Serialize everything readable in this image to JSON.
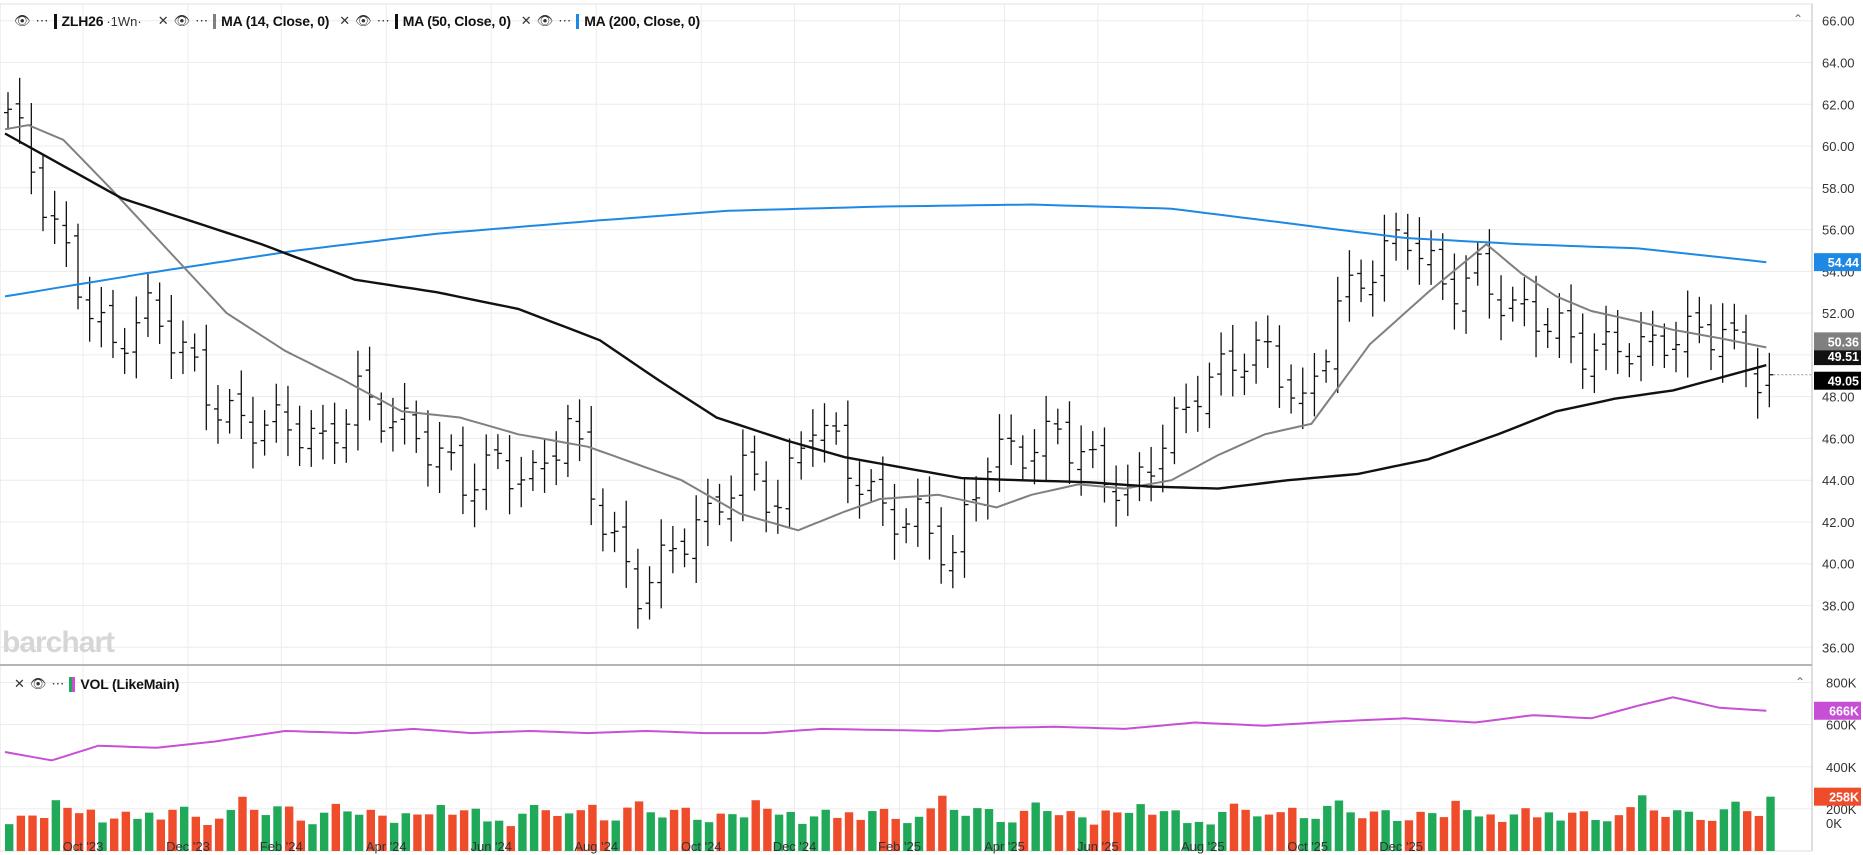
{
  "legend_main": {
    "symbol": "ZLH26",
    "interval": "1Wn",
    "ma14_label": "MA (14, Close, 0)",
    "ma50_label": "MA (50, Close, 0)",
    "ma200_label": "MA (200, Close, 0)"
  },
  "legend_vol": {
    "label": "VOL (LikeMain)"
  },
  "watermark": "barchart",
  "colors": {
    "ma14": "#808080",
    "ma50": "#111111",
    "ma200": "#1e88e5",
    "vol_ma": "#c74fd6",
    "vol_up": "#21a95a",
    "vol_down": "#ef4c2b",
    "price_bars": "#111111"
  },
  "chart_data": [
    {
      "type": "ohlc",
      "panel": "price",
      "symbol": "ZLH26",
      "interval": "1Wn",
      "y_axis_ticks": [
        "66.00",
        "64.00",
        "62.00",
        "60.00",
        "58.00",
        "56.00",
        "54.00",
        "52.00",
        "50.00",
        "48.00",
        "46.00",
        "44.00",
        "42.00",
        "40.00",
        "38.00",
        "36.00"
      ],
      "x_axis_ticks": [
        "Oct '23",
        "Dec '23",
        "Feb '24",
        "Apr '24",
        "Jun '24",
        "Aug '24",
        "Oct '24",
        "Dec '24",
        "Feb '25",
        "Apr '25",
        "Jun '25",
        "Aug '25",
        "Oct '25",
        "Dec '25"
      ],
      "ylim": [
        35.2,
        66.8
      ],
      "price_labels": [
        {
          "name": "MA 200",
          "value": "54.44"
        },
        {
          "name": "MA 14",
          "value": "50.36"
        },
        {
          "name": "MA 50",
          "value": "49.51"
        },
        {
          "name": "Last",
          "value": "49.05"
        }
      ],
      "close_anchors": [
        [
          0,
          61.2
        ],
        [
          3,
          57.2
        ],
        [
          6,
          54.0
        ],
        [
          9,
          50.5
        ],
        [
          12,
          51.5
        ],
        [
          15,
          50.0
        ],
        [
          18,
          48.0
        ],
        [
          21,
          46.8
        ],
        [
          24,
          46.0
        ],
        [
          27,
          45.5
        ],
        [
          30,
          48.8
        ],
        [
          33,
          47.0
        ],
        [
          36,
          45.0
        ],
        [
          39,
          43.8
        ],
        [
          42,
          45.5
        ],
        [
          45,
          44.0
        ],
        [
          48,
          46.0
        ],
        [
          51,
          42.0
        ],
        [
          54,
          39.3
        ],
        [
          57,
          40.8
        ],
        [
          60,
          41.5
        ],
        [
          63,
          44.5
        ],
        [
          66,
          43.5
        ],
        [
          69,
          47.0
        ],
        [
          72,
          44.0
        ],
        [
          75,
          42.5
        ],
        [
          78,
          42.8
        ],
        [
          81,
          40.2
        ],
        [
          84,
          44.5
        ],
        [
          87,
          45.5
        ],
        [
          90,
          47.0
        ],
        [
          93,
          44.5
        ],
        [
          96,
          42.5
        ],
        [
          99,
          46.0
        ],
        [
          102,
          49.0
        ],
        [
          105,
          49.5
        ],
        [
          108,
          49.5
        ],
        [
          111,
          47.5
        ],
        [
          114,
          53.0
        ],
        [
          117,
          54.0
        ],
        [
          120,
          55.2
        ],
        [
          123,
          53.5
        ],
        [
          126,
          54.5
        ],
        [
          129,
          51.8
        ],
        [
          132,
          51.0
        ],
        [
          135,
          50.5
        ],
        [
          138,
          51.0
        ],
        [
          141,
          50.0
        ],
        [
          144,
          50.5
        ],
        [
          147,
          51.5
        ],
        [
          150,
          49.5
        ],
        [
          151,
          49.05
        ]
      ],
      "ma14_anchors": [
        [
          0,
          60.8
        ],
        [
          2,
          61.0
        ],
        [
          5,
          60.3
        ],
        [
          9,
          58.0
        ],
        [
          14,
          55.0
        ],
        [
          19,
          52.0
        ],
        [
          24,
          50.2
        ],
        [
          29,
          48.8
        ],
        [
          34,
          47.3
        ],
        [
          39,
          47.0
        ],
        [
          44,
          46.2
        ],
        [
          50,
          45.6
        ],
        [
          54,
          44.8
        ],
        [
          58,
          44.0
        ],
        [
          63,
          42.4
        ],
        [
          68,
          41.6
        ],
        [
          72,
          42.5
        ],
        [
          75,
          43.1
        ],
        [
          80,
          43.3
        ],
        [
          85,
          42.7
        ],
        [
          88,
          43.3
        ],
        [
          92,
          43.8
        ],
        [
          96,
          43.6
        ],
        [
          100,
          44.0
        ],
        [
          104,
          45.2
        ],
        [
          108,
          46.2
        ],
        [
          112,
          46.7
        ],
        [
          117,
          50.5
        ],
        [
          122,
          53.0
        ],
        [
          127,
          55.3
        ],
        [
          130,
          53.9
        ],
        [
          133,
          52.8
        ],
        [
          136,
          52.1
        ],
        [
          140,
          51.6
        ],
        [
          143,
          51.2
        ],
        [
          147,
          50.8
        ],
        [
          151,
          50.36
        ]
      ],
      "ma50_anchors": [
        [
          0,
          60.6
        ],
        [
          10,
          57.5
        ],
        [
          22,
          55.3
        ],
        [
          30,
          53.6
        ],
        [
          37,
          53.0
        ],
        [
          44,
          52.2
        ],
        [
          51,
          50.7
        ],
        [
          56,
          48.8
        ],
        [
          61,
          47.0
        ],
        [
          67,
          45.9
        ],
        [
          72,
          45.1
        ],
        [
          77,
          44.6
        ],
        [
          82,
          44.1
        ],
        [
          87,
          44.0
        ],
        [
          93,
          43.9
        ],
        [
          98,
          43.7
        ],
        [
          104,
          43.6
        ],
        [
          110,
          44.0
        ],
        [
          116,
          44.3
        ],
        [
          122,
          45.0
        ],
        [
          128,
          46.2
        ],
        [
          133,
          47.3
        ],
        [
          138,
          47.9
        ],
        [
          143,
          48.3
        ],
        [
          147,
          48.9
        ],
        [
          151,
          49.51
        ]
      ],
      "ma200_anchors": [
        [
          0,
          52.8
        ],
        [
          12,
          53.9
        ],
        [
          25,
          55.0
        ],
        [
          37,
          55.8
        ],
        [
          50,
          56.4
        ],
        [
          62,
          56.9
        ],
        [
          75,
          57.1
        ],
        [
          88,
          57.2
        ],
        [
          100,
          57.0
        ],
        [
          110,
          56.3
        ],
        [
          120,
          55.6
        ],
        [
          130,
          55.3
        ],
        [
          140,
          55.1
        ],
        [
          151,
          54.44
        ]
      ]
    },
    {
      "type": "bar",
      "panel": "volume",
      "label": "VOL (LikeMain)",
      "y_axis_ticks": [
        "800K",
        "600K",
        "400K",
        "200K",
        "0K"
      ],
      "ylim": [
        0,
        850000
      ],
      "value_labels": [
        {
          "name": "VOL MA",
          "value": "666K"
        },
        {
          "name": "Last volume",
          "value": "258K"
        }
      ],
      "volume_pattern": [
        150000,
        175000,
        160000,
        140000,
        210000,
        180000,
        165000,
        195000,
        150000,
        170000,
        185000,
        140000,
        160000,
        130000,
        175000,
        200000,
        170000,
        145000,
        160000,
        185000,
        230000,
        170000,
        150000,
        195000,
        210000,
        160000,
        140000,
        180000,
        205000,
        165000
      ],
      "vol_ma_anchors": [
        [
          0,
          470000
        ],
        [
          4,
          430000
        ],
        [
          8,
          500000
        ],
        [
          13,
          490000
        ],
        [
          18,
          520000
        ],
        [
          24,
          570000
        ],
        [
          30,
          560000
        ],
        [
          35,
          580000
        ],
        [
          40,
          560000
        ],
        [
          45,
          570000
        ],
        [
          50,
          560000
        ],
        [
          55,
          570000
        ],
        [
          60,
          560000
        ],
        [
          65,
          560000
        ],
        [
          70,
          580000
        ],
        [
          75,
          575000
        ],
        [
          80,
          570000
        ],
        [
          85,
          585000
        ],
        [
          90,
          590000
        ],
        [
          96,
          580000
        ],
        [
          102,
          610000
        ],
        [
          108,
          595000
        ],
        [
          114,
          615000
        ],
        [
          120,
          630000
        ],
        [
          126,
          610000
        ],
        [
          131,
          645000
        ],
        [
          136,
          630000
        ],
        [
          140,
          690000
        ],
        [
          143,
          730000
        ],
        [
          147,
          680000
        ],
        [
          151,
          666000
        ]
      ]
    }
  ]
}
